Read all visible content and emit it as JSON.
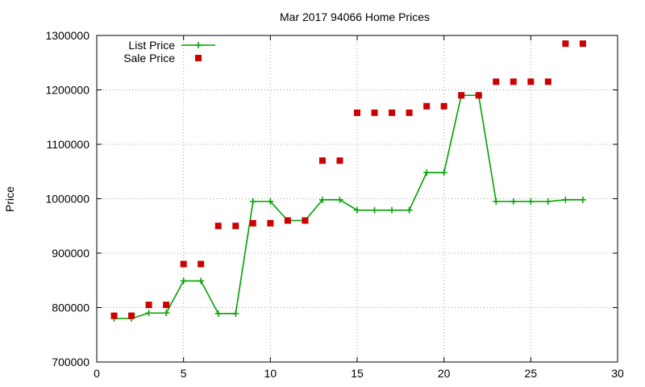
{
  "chart_data": {
    "type": "scatter",
    "title": "Mar 2017 94066 Home Prices",
    "xlabel": "",
    "ylabel": "Price",
    "xlim": [
      0,
      30
    ],
    "ylim": [
      700000,
      1300000
    ],
    "xticks": [
      0,
      5,
      10,
      15,
      20,
      25,
      30
    ],
    "yticks": [
      700000,
      800000,
      900000,
      1000000,
      1100000,
      1200000,
      1300000
    ],
    "grid": true,
    "legend_position": "top-left",
    "series": [
      {
        "name": "List Price",
        "style": "line-with-plus-markers",
        "color": "#00a000",
        "x": [
          1,
          2,
          3,
          4,
          5,
          6,
          7,
          8,
          9,
          10,
          11,
          12,
          13,
          14,
          15,
          16,
          17,
          18,
          19,
          20,
          21,
          22,
          23,
          24,
          25,
          26,
          27,
          28
        ],
        "y": [
          780000,
          780000,
          790000,
          790000,
          849000,
          849000,
          789000,
          789000,
          995000,
          995000,
          960000,
          960000,
          998000,
          998000,
          979000,
          979000,
          979000,
          979000,
          1048000,
          1048000,
          1190000,
          1190000,
          995000,
          995000,
          995000,
          995000,
          998000,
          998000
        ]
      },
      {
        "name": "Sale Price",
        "style": "square-markers",
        "color": "#cc0000",
        "x": [
          1,
          2,
          3,
          4,
          5,
          6,
          7,
          8,
          9,
          10,
          11,
          12,
          13,
          14,
          15,
          16,
          17,
          18,
          19,
          20,
          21,
          22,
          23,
          24,
          25,
          26,
          27,
          28
        ],
        "y": [
          785000,
          785000,
          805000,
          805000,
          880000,
          880000,
          950000,
          950000,
          955000,
          955000,
          960000,
          960000,
          1070000,
          1070000,
          1158000,
          1158000,
          1158000,
          1158000,
          1170000,
          1170000,
          1190000,
          1190000,
          1215000,
          1215000,
          1215000,
          1215000,
          1285000,
          1285000
        ]
      }
    ]
  }
}
